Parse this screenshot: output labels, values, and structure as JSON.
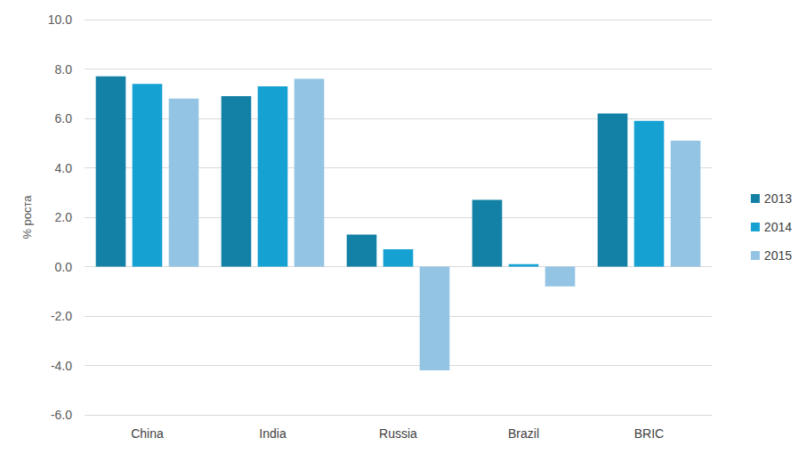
{
  "chart_data": {
    "type": "bar",
    "y_label": "% роста",
    "categories": [
      "China",
      "India",
      "Russia",
      "Brazil",
      "BRIC"
    ],
    "series": [
      {
        "name": "2013",
        "color": "#1380a6",
        "values": [
          7.7,
          6.9,
          1.3,
          2.7,
          6.2
        ]
      },
      {
        "name": "2014",
        "color": "#16a1d3",
        "values": [
          7.4,
          7.3,
          0.7,
          0.1,
          5.9
        ]
      },
      {
        "name": "2015",
        "color": "#93c4e3",
        "values": [
          6.8,
          7.6,
          -4.2,
          -0.8,
          5.1
        ]
      }
    ],
    "ylim": [
      -6,
      10
    ],
    "yticks": [
      {
        "value": -6,
        "label": "-6.0"
      },
      {
        "value": -4,
        "label": "-4.0"
      },
      {
        "value": -2,
        "label": "-2.0"
      },
      {
        "value": 0,
        "label": "0.0"
      },
      {
        "value": 2,
        "label": "2.0"
      },
      {
        "value": 4,
        "label": "4.0"
      },
      {
        "value": 6,
        "label": "6.0"
      },
      {
        "value": 8,
        "label": "8.0"
      },
      {
        "value": 10,
        "label": "10.0"
      }
    ],
    "grid": true,
    "legend": "right"
  }
}
